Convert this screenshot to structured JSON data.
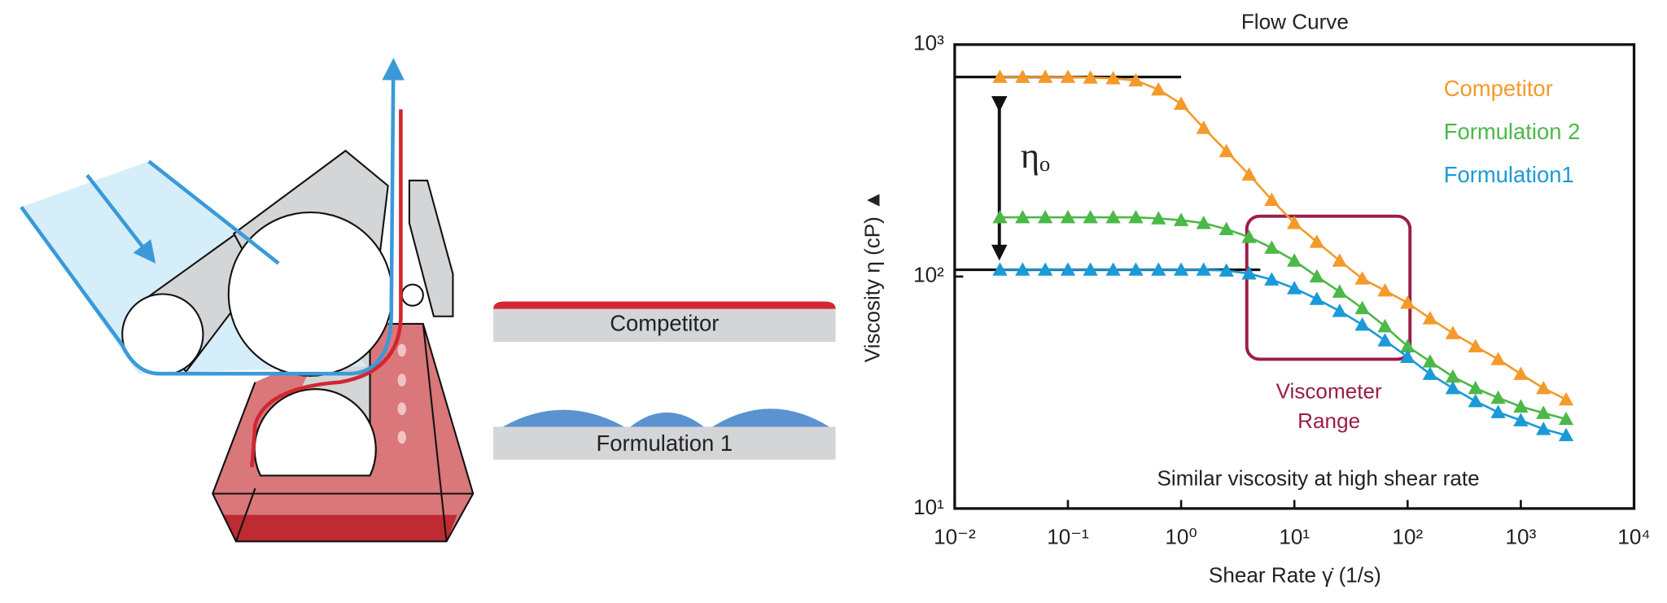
{
  "diagram": {
    "labels": [
      "Competitor",
      "Formulation 1"
    ]
  },
  "chart_data": {
    "type": "line",
    "title": "Flow Curve",
    "xlabel": "Shear Rate γ̇ (1/s)",
    "ylabel": "Viscosity η (cP) ▲",
    "xscale": "log",
    "yscale": "log",
    "xlim": [
      0.01,
      10000
    ],
    "ylim": [
      10,
      1000
    ],
    "xticks": [
      {
        "value": 0.01,
        "label": "10⁻²"
      },
      {
        "value": 0.1,
        "label": "10⁻¹"
      },
      {
        "value": 1,
        "label": "10⁰"
      },
      {
        "value": 10,
        "label": "10¹"
      },
      {
        "value": 100,
        "label": "10²"
      },
      {
        "value": 1000,
        "label": "10³"
      },
      {
        "value": 10000,
        "label": "10⁴"
      }
    ],
    "yticks": [
      {
        "value": 10,
        "label": "10¹"
      },
      {
        "value": 100,
        "label": "10²"
      },
      {
        "value": 1000,
        "label": "10³"
      }
    ],
    "x": [
      0.0251,
      0.0398,
      0.0631,
      0.1,
      0.158,
      0.251,
      0.398,
      0.631,
      1,
      1.58,
      2.51,
      3.98,
      6.31,
      10,
      15.8,
      25.1,
      39.8,
      63.1,
      100,
      158,
      251,
      398,
      631,
      1000,
      1585,
      2512
    ],
    "series": [
      {
        "name": "Competitor",
        "color": "#f39a2b",
        "values": [
          725,
          725,
          725,
          725,
          720,
          715,
          700,
          640,
          555,
          437,
          347,
          275,
          214,
          170,
          141,
          117,
          98,
          87,
          77,
          66,
          57,
          50,
          44,
          38,
          33,
          29.5
        ]
      },
      {
        "name": "Formulation 2",
        "color": "#4cb848",
        "values": [
          180,
          180,
          180,
          180,
          180,
          180,
          180,
          178,
          175,
          170,
          160,
          148,
          133,
          117,
          100,
          86,
          73,
          61,
          50,
          43,
          37,
          33,
          30,
          27.5,
          25.8,
          24.3
        ]
      },
      {
        "name": "Formulation1",
        "color": "#1a9ad6",
        "values": [
          107,
          107,
          107,
          107,
          107,
          107,
          107,
          107,
          107,
          107,
          106,
          103,
          97,
          89,
          80,
          71,
          62,
          53,
          45,
          38,
          33,
          29,
          26,
          24,
          22,
          20.7
        ]
      }
    ],
    "reference_lines": [
      {
        "y": 725,
        "x": [
          0.01,
          1
        ]
      },
      {
        "y": 107,
        "x": [
          0.01,
          5
        ]
      }
    ],
    "eta_label": "ηₒ",
    "range_box": {
      "x": [
        3.8,
        105
      ],
      "y": [
        44,
        182
      ],
      "color": "#9b1d46"
    },
    "range_label": [
      "Viscometer",
      "Range"
    ],
    "note": "Similar viscosity at high shear rate"
  }
}
